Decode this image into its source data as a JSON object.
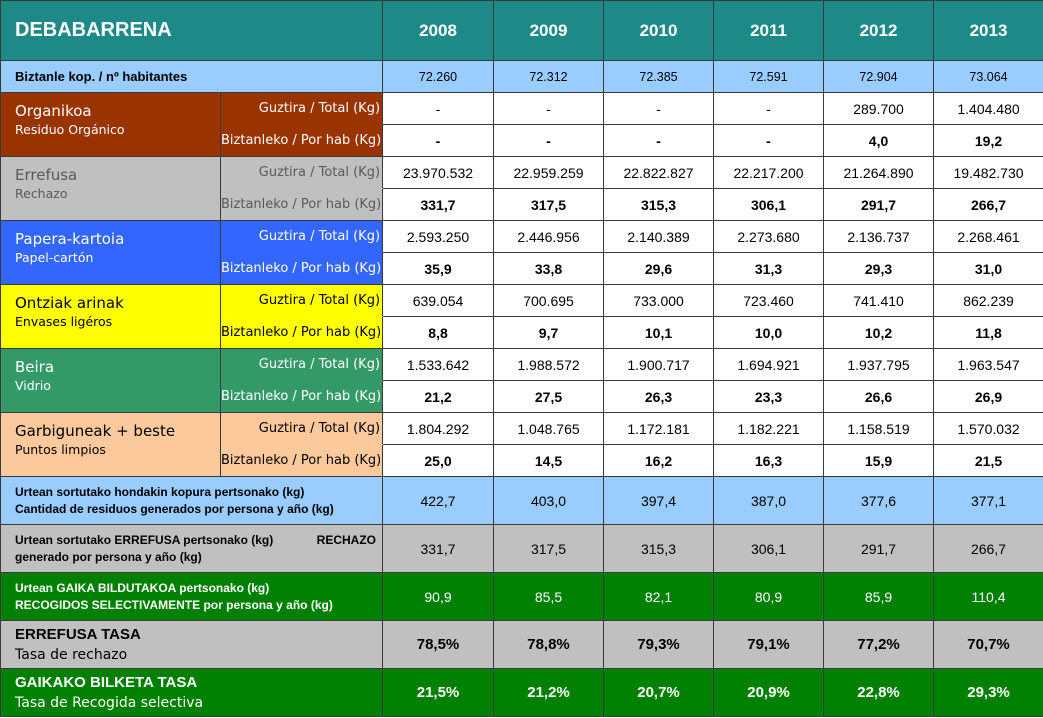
{
  "title": "DEBABARRENA",
  "years": [
    "2008",
    "2009",
    "2010",
    "2011",
    "2012",
    "2013"
  ],
  "population": {
    "label": "Biztanle kop. / nº habitantes",
    "values": [
      "72.260",
      "72.312",
      "72.385",
      "72.591",
      "72.904",
      "73.064"
    ]
  },
  "total_label": "Guztira / Total (Kg)",
  "per_hab_label": "Biztanleko / Por hab (Kg)",
  "categories": [
    {
      "name": "Organikoa",
      "sub": "Residuo Orgánico",
      "color": "#993300",
      "text_color": "#ffffff",
      "totals": [
        "-",
        "-",
        "-",
        "-",
        "289.700",
        "1.404.480"
      ],
      "per_hab": [
        "-",
        "-",
        "-",
        "-",
        "4,0",
        "19,2"
      ]
    },
    {
      "name": "Errefusa",
      "sub": "Rechazo",
      "color": "#c0c0c0",
      "text_color": "#595959",
      "totals": [
        "23.970.532",
        "22.959.259",
        "22.822.827",
        "22.217.200",
        "21.264.890",
        "19.482.730"
      ],
      "per_hab": [
        "331,7",
        "317,5",
        "315,3",
        "306,1",
        "291,7",
        "266,7"
      ]
    },
    {
      "name": "Papera-kartoia",
      "sub": "Papel-cartón",
      "color": "#3366ff",
      "text_color": "#ffffff",
      "totals": [
        "2.593.250",
        "2.446.956",
        "2.140.389",
        "2.273.680",
        "2.136.737",
        "2.268.461"
      ],
      "per_hab": [
        "35,9",
        "33,8",
        "29,6",
        "31,3",
        "29,3",
        "31,0"
      ]
    },
    {
      "name": "Ontziak arinak",
      "sub": "Envases ligéros",
      "color": "#ffff00",
      "text_color": "#000000",
      "totals": [
        "639.054",
        "700.695",
        "733.000",
        "723.460",
        "741.410",
        "862.239"
      ],
      "per_hab": [
        "8,8",
        "9,7",
        "10,1",
        "10,0",
        "10,2",
        "11,8"
      ]
    },
    {
      "name": "Beira",
      "sub": "Vidrio",
      "color": "#339966",
      "text_color": "#ffffff",
      "totals": [
        "1.533.642",
        "1.988.572",
        "1.900.717",
        "1.694.921",
        "1.937.795",
        "1.963.547"
      ],
      "per_hab": [
        "21,2",
        "27,5",
        "26,3",
        "23,3",
        "26,6",
        "26,9"
      ]
    },
    {
      "name": "Garbiguneak + beste",
      "sub": "Puntos limpios",
      "color": "#fcc99c",
      "text_color": "#000000",
      "totals": [
        "1.804.292",
        "1.048.765",
        "1.172.181",
        "1.182.221",
        "1.158.519",
        "1.570.032"
      ],
      "per_hab": [
        "25,0",
        "14,5",
        "16,2",
        "16,3",
        "15,9",
        "21,5"
      ]
    }
  ],
  "summary": [
    {
      "line1": "Urtean sortutako hondakin kopura pertsonako (kg)",
      "line2": "Cantidad de residuos generados por persona y año (kg)",
      "right": "",
      "color": "#99ccff",
      "text_color": "#000000",
      "values": [
        "422,7",
        "403,0",
        "397,4",
        "387,0",
        "377,6",
        "377,1"
      ]
    },
    {
      "line1": "Urtean sortutako ERREFUSA pertsonako (kg)",
      "line2": "generado por persona y año (kg)",
      "right": "RECHAZO",
      "color": "#c0c0c0",
      "text_color": "#000000",
      "values": [
        "331,7",
        "317,5",
        "315,3",
        "306,1",
        "291,7",
        "266,7"
      ]
    },
    {
      "line1": "Urtean GAIKA BILDUTAKOA pertsonako (kg)",
      "line2": "RECOGIDOS SELECTIVAMENTE por persona y año (kg)",
      "right": "",
      "color": "#008000",
      "text_color": "#ffffff",
      "values": [
        "90,9",
        "85,5",
        "82,1",
        "80,9",
        "85,9",
        "110,4"
      ]
    }
  ],
  "rates": [
    {
      "main": "ERREFUSA TASA",
      "sub": "Tasa de rechazo",
      "color": "#c0c0c0",
      "text_color": "#000000",
      "values": [
        "78,5%",
        "78,8%",
        "79,3%",
        "79,1%",
        "77,2%",
        "70,7%"
      ]
    },
    {
      "main": "GAIKAKO BILKETA TASA",
      "sub": "Tasa de Recogida selectiva",
      "color": "#008000",
      "text_color": "#ffffff",
      "values": [
        "21,5%",
        "21,2%",
        "20,7%",
        "20,9%",
        "22,8%",
        "29,3%"
      ]
    }
  ]
}
